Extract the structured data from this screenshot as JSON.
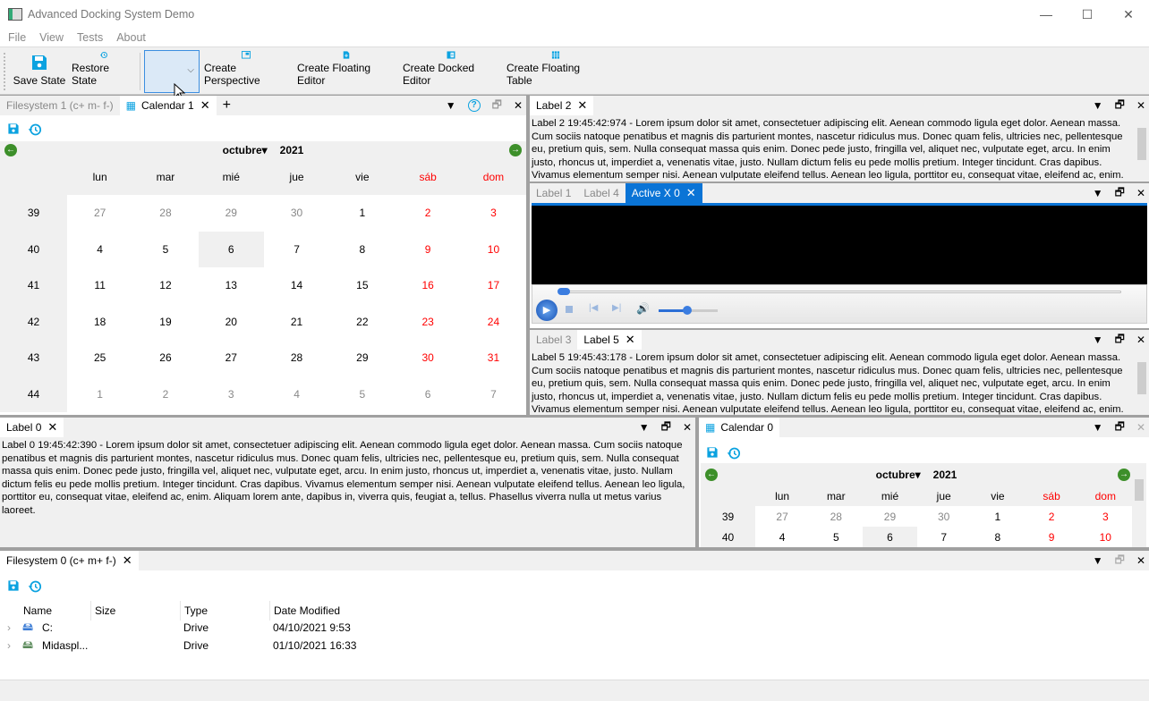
{
  "window": {
    "title": "Advanced Docking System Demo",
    "minimize": "—",
    "maximize": "☐",
    "close": "✕"
  },
  "menu": [
    "File",
    "View",
    "Tests",
    "About"
  ],
  "toolbar": {
    "save_state": "Save State",
    "restore_state": "Restore State",
    "perspective_combo": "",
    "create_perspective": "Create Perspective",
    "create_floating_editor": "Create Floating Editor",
    "create_docked_editor": "Create Docked Editor",
    "create_floating_table": "Create Floating Table",
    "accent": "#0ba2e0"
  },
  "lorem": "Lorem ipsum dolor sit amet, consectetuer adipiscing elit. Aenean commodo ligula eget dolor. Aenean massa. Cum sociis natoque penatibus et magnis dis parturient montes, nascetur ridiculus mus. Donec quam felis, ultricies nec, pellentesque eu, pretium quis, sem. Nulla consequat massa quis enim. Donec pede justo, fringilla vel, aliquet nec, vulputate eget, arcu. In enim justo, rhoncus ut, imperdiet a, venenatis vitae, justo. Nullam dictum felis eu pede mollis pretium. Integer tincidunt. Cras dapibus. Vivamus elementum semper nisi. Aenean vulputate eleifend tellus. Aenean leo ligula, porttitor eu, consequat vitae, eleifend ac, enim. Aliquam lorem ante, dapibus in, viverra quis, feugiat a, tellus. Phasellus viverra nulla ut metus varius laoreet.",
  "top_left": {
    "tabs": [
      "Filesystem 1 (c+ m- f-)",
      "Calendar 1"
    ],
    "add_tab": "+"
  },
  "right": {
    "label2": {
      "tab": "Label 2",
      "text": "Label 2 19:45:42:974 - "
    },
    "activex": {
      "tabs": [
        "Label 1",
        "Label 4",
        "Active X 0"
      ]
    },
    "label5": {
      "tabs": [
        "Label 3",
        "Label 5"
      ],
      "text": "Label 5 19:45:43:178 - "
    }
  },
  "label0": {
    "tab": "Label 0",
    "text": "Label 0 19:45:42:390 - "
  },
  "calendar0": {
    "tab": "Calendar 0"
  },
  "calendar": {
    "month": "octubre",
    "year": "2021",
    "weekdays": [
      "lun",
      "mar",
      "mié",
      "jue",
      "vie",
      "sáb",
      "dom"
    ],
    "weekend_color": "#ff0000",
    "selected": "6",
    "weeks": [
      {
        "week": "39",
        "days": [
          "27",
          "28",
          "29",
          "30",
          "1",
          "2",
          "3"
        ],
        "other_month": [
          true,
          true,
          true,
          true,
          false,
          false,
          false
        ]
      },
      {
        "week": "40",
        "days": [
          "4",
          "5",
          "6",
          "7",
          "8",
          "9",
          "10"
        ],
        "other_month": [
          false,
          false,
          false,
          false,
          false,
          false,
          false
        ]
      },
      {
        "week": "41",
        "days": [
          "11",
          "12",
          "13",
          "14",
          "15",
          "16",
          "17"
        ],
        "other_month": [
          false,
          false,
          false,
          false,
          false,
          false,
          false
        ]
      },
      {
        "week": "42",
        "days": [
          "18",
          "19",
          "20",
          "21",
          "22",
          "23",
          "24"
        ],
        "other_month": [
          false,
          false,
          false,
          false,
          false,
          false,
          false
        ]
      },
      {
        "week": "43",
        "days": [
          "25",
          "26",
          "27",
          "28",
          "29",
          "30",
          "31"
        ],
        "other_month": [
          false,
          false,
          false,
          false,
          false,
          false,
          false
        ]
      },
      {
        "week": "44",
        "days": [
          "1",
          "2",
          "3",
          "4",
          "5",
          "6",
          "7"
        ],
        "other_month": [
          true,
          true,
          true,
          true,
          true,
          true,
          true
        ]
      }
    ]
  },
  "filesystem0": {
    "tab": "Filesystem 0 (c+ m+ f-)",
    "columns": [
      "Name",
      "Size",
      "Type",
      "Date Modified"
    ],
    "rows": [
      {
        "name": "C:",
        "size": "",
        "type": "Drive",
        "date": "04/10/2021 9:53"
      },
      {
        "name": "Midaspl...",
        "size": "",
        "type": "Drive",
        "date": "01/10/2021 16:33"
      }
    ]
  }
}
